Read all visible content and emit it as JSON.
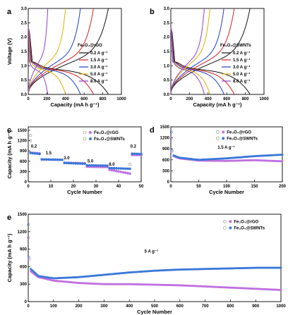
{
  "colors": {
    "c02": "#111111",
    "c15": "#d62020",
    "c30": "#2040d0",
    "c50": "#e0b000",
    "c80": "#9040c8",
    "rgo": "#c070e0",
    "swnt": "#3a78d8",
    "hollow": "#888888"
  },
  "chart_data": [
    {
      "id": "a",
      "type": "line",
      "letter": "a",
      "xlabel": "Capacity (mA h g⁻¹)",
      "ylabel": "Voltage (V)",
      "xlim": [
        0,
        1000
      ],
      "ylim": [
        0,
        3.0
      ],
      "xticks": [
        0,
        200,
        400,
        600,
        800,
        1000
      ],
      "yticks": [
        0.0,
        0.5,
        1.0,
        1.5,
        2.0,
        2.5,
        3.0
      ],
      "legend_title": "Fe₃O₄@rGO",
      "series": [
        {
          "name": "0.2 A g⁻¹",
          "color": "#111111",
          "capacity": 860
        },
        {
          "name": "1.5 A g⁻¹",
          "color": "#d62020",
          "capacity": 700
        },
        {
          "name": "3.0 A g⁻¹",
          "color": "#2040d0",
          "capacity": 560
        },
        {
          "name": "5.0 A g⁻¹",
          "color": "#e0b000",
          "capacity": 400
        },
        {
          "name": "8.0 A g⁻¹",
          "color": "#9040c8",
          "capacity": 210
        }
      ]
    },
    {
      "id": "b",
      "type": "line",
      "letter": "b",
      "xlabel": "Capacity (mA h g⁻¹)",
      "ylabel": "",
      "xlim": [
        0,
        1000
      ],
      "ylim": [
        0,
        3.0
      ],
      "xticks": [
        0,
        200,
        400,
        600,
        800,
        1000
      ],
      "yticks": [
        0.0,
        0.5,
        1.0,
        1.5,
        2.0,
        2.5,
        3.0
      ],
      "legend_title": "Fe₃O₄@SWNTs",
      "series": [
        {
          "name": "0.2 A g⁻¹",
          "color": "#111111",
          "capacity": 850
        },
        {
          "name": "1.5 A g⁻¹",
          "color": "#d62020",
          "capacity": 680
        },
        {
          "name": "3.0 A g⁻¹",
          "color": "#2040d0",
          "capacity": 570
        },
        {
          "name": "5.0 A g⁻¹",
          "color": "#e0b000",
          "capacity": 420
        },
        {
          "name": "8.0 A g⁻¹",
          "color": "#9040c8",
          "capacity": 360
        }
      ]
    },
    {
      "id": "c",
      "type": "scatter",
      "letter": "c",
      "xlabel": "Cycle Number",
      "ylabel": "Capacity (mA h g⁻¹)",
      "xlim": [
        0,
        50
      ],
      "ylim": [
        0,
        1600
      ],
      "xticks": [
        0,
        10,
        20,
        30,
        40,
        50
      ],
      "yticks": [
        0,
        300,
        600,
        900,
        1200,
        1500
      ],
      "rate_labels": [
        {
          "text": "0.2",
          "x": 2.5,
          "y": 1000
        },
        {
          "text": "1.5",
          "x": 9,
          "y": 800
        },
        {
          "text": "3.0",
          "x": 17,
          "y": 660
        },
        {
          "text": "5.0",
          "x": 27.5,
          "y": 560
        },
        {
          "text": "8.0",
          "x": 37,
          "y": 470
        },
        {
          "text": "0.2",
          "x": 46.5,
          "y": 1000
        }
      ],
      "series": [
        {
          "name": "Fe₃O₄@rGO",
          "color": "#c070e0",
          "segments": [
            [
              1,
              5,
              850,
              830
            ],
            [
              6,
              15,
              650,
              640
            ],
            [
              16,
              25,
              555,
              540
            ],
            [
              26,
              35,
              440,
              430
            ],
            [
              36,
              45,
              350,
              240
            ],
            [
              46,
              50,
              780,
              780
            ]
          ],
          "outliers": [
            [
              1,
              1350
            ]
          ]
        },
        {
          "name": "Fe₃O₄@SWNTs",
          "color": "#3a78d8",
          "segments": [
            [
              1,
              5,
              840,
              810
            ],
            [
              6,
              15,
              655,
              640
            ],
            [
              16,
              25,
              550,
              525
            ],
            [
              26,
              35,
              480,
              470
            ],
            [
              36,
              45,
              400,
              380
            ],
            [
              46,
              50,
              820,
              810
            ]
          ],
          "outliers": [
            [
              1,
              1200
            ],
            [
              45,
              510
            ]
          ]
        }
      ]
    },
    {
      "id": "d",
      "type": "scatter",
      "letter": "d",
      "xlabel": "Cycle Number",
      "ylabel": "",
      "xlim": [
        0,
        200
      ],
      "ylim": [
        0,
        1500
      ],
      "xticks": [
        0,
        50,
        100,
        150,
        200
      ],
      "yticks": [
        0,
        300,
        600,
        900,
        1200,
        1500
      ],
      "annotation": "1.5 A g⁻¹",
      "series": [
        {
          "name": "Fe₃O₄@rGO",
          "color": "#c070e0",
          "points": [
            [
              1,
              1180
            ],
            [
              2,
              820
            ],
            [
              5,
              700
            ],
            [
              15,
              640
            ],
            [
              50,
              580
            ],
            [
              100,
              570
            ],
            [
              150,
              590
            ],
            [
              200,
              560
            ]
          ]
        },
        {
          "name": "Fe₃O₄@SWNTs",
          "color": "#3a78d8",
          "points": [
            [
              1,
              1350
            ],
            [
              2,
              860
            ],
            [
              5,
              720
            ],
            [
              15,
              660
            ],
            [
              50,
              600
            ],
            [
              100,
              640
            ],
            [
              150,
              700
            ],
            [
              200,
              740
            ]
          ]
        }
      ]
    },
    {
      "id": "e",
      "type": "scatter",
      "letter": "e",
      "xlabel": "Cycle Number",
      "ylabel": "Capacity (mA h g⁻¹)",
      "xlim": [
        0,
        1000
      ],
      "ylim": [
        0,
        1500
      ],
      "xticks": [
        0,
        100,
        200,
        300,
        400,
        500,
        600,
        700,
        800,
        900,
        1000
      ],
      "yticks": [
        0,
        300,
        600,
        900,
        1200,
        1500
      ],
      "annotation": "5 A g⁻¹",
      "series": [
        {
          "name": "Fe₃O₄@rGO",
          "color": "#c070e0",
          "points": [
            [
              1,
              1100
            ],
            [
              3,
              720
            ],
            [
              10,
              520
            ],
            [
              40,
              420
            ],
            [
              100,
              360
            ],
            [
              200,
              320
            ],
            [
              300,
              300
            ],
            [
              400,
              300
            ],
            [
              500,
              290
            ],
            [
              600,
              280
            ],
            [
              700,
              260
            ],
            [
              800,
              240
            ],
            [
              900,
              220
            ],
            [
              1000,
              200
            ]
          ]
        },
        {
          "name": "Fe₃O₄@SWNTs",
          "color": "#3a78d8",
          "points": [
            [
              1,
              1320
            ],
            [
              3,
              760
            ],
            [
              10,
              560
            ],
            [
              40,
              440
            ],
            [
              100,
              400
            ],
            [
              200,
              420
            ],
            [
              300,
              460
            ],
            [
              400,
              500
            ],
            [
              500,
              530
            ],
            [
              600,
              550
            ],
            [
              700,
              560
            ],
            [
              800,
              570
            ],
            [
              900,
              580
            ],
            [
              1000,
              580
            ]
          ]
        }
      ]
    }
  ]
}
